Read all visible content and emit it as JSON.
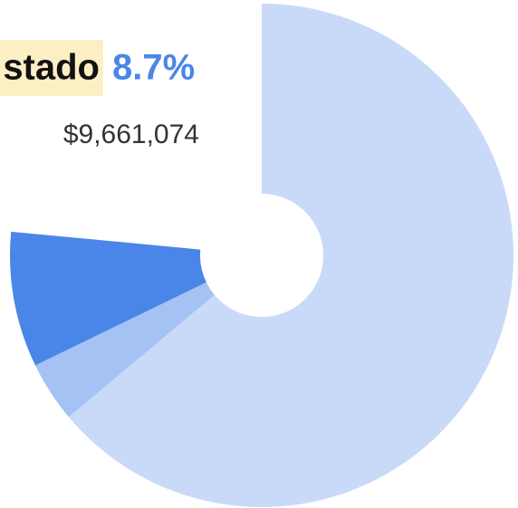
{
  "chart_data": {
    "type": "donut",
    "categories": [
      null,
      null,
      "stado"
    ],
    "values": [
      63.9,
      3.9,
      8.7
    ],
    "value_labels": [
      null,
      null,
      "8.7%"
    ],
    "colors": [
      "#c9daf8",
      "#a4c2f4",
      "#4a86e8"
    ],
    "highlight": {
      "category": "stado",
      "value_label": "8.7%",
      "amount": "$9,661,074"
    }
  }
}
